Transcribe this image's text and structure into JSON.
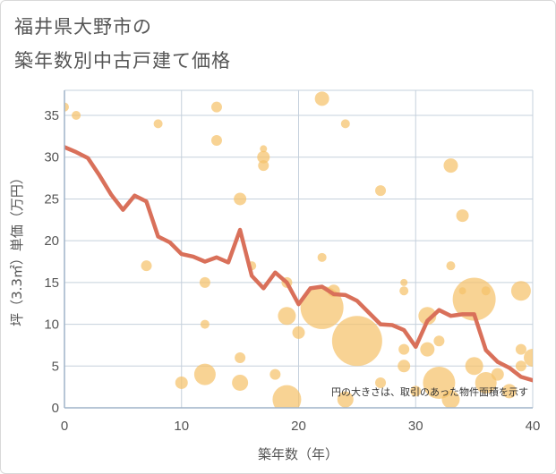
{
  "chart_data": {
    "type": "scatter",
    "title": [
      "福井県大野市の",
      "築年数別中古戸建て価格"
    ],
    "xlabel": "築年数（年）",
    "ylabel": "坪（3.3㎡）単価（万円）",
    "xlim": [
      0,
      40
    ],
    "ylim": [
      0,
      38
    ],
    "xticks": [
      0,
      10,
      20,
      30,
      40
    ],
    "yticks": [
      0,
      5,
      10,
      15,
      20,
      25,
      30,
      35
    ],
    "note": "円の大きさは、取引のあった物件面積を示す",
    "colors": {
      "bubble": "#f5c26b",
      "line": "#d9705a",
      "grid": "#c5d0dc",
      "axis": "#9fb3c8"
    },
    "series": [
      {
        "name": "bubbles",
        "kind": "scatter",
        "points": [
          {
            "x": 0,
            "y": 36,
            "r": 5
          },
          {
            "x": 1,
            "y": 35,
            "r": 5
          },
          {
            "x": 8,
            "y": 34,
            "r": 5
          },
          {
            "x": 13,
            "y": 36,
            "r": 6
          },
          {
            "x": 13,
            "y": 32,
            "r": 6
          },
          {
            "x": 17,
            "y": 31,
            "r": 4
          },
          {
            "x": 17,
            "y": 30,
            "r": 7
          },
          {
            "x": 17,
            "y": 29,
            "r": 6
          },
          {
            "x": 22,
            "y": 37,
            "r": 8
          },
          {
            "x": 24,
            "y": 34,
            "r": 5
          },
          {
            "x": 33,
            "y": 29,
            "r": 8
          },
          {
            "x": 27,
            "y": 26,
            "r": 6
          },
          {
            "x": 15,
            "y": 25,
            "r": 7
          },
          {
            "x": 34,
            "y": 23,
            "r": 7
          },
          {
            "x": 7,
            "y": 17,
            "r": 6
          },
          {
            "x": 22,
            "y": 18,
            "r": 5
          },
          {
            "x": 16,
            "y": 17,
            "r": 5
          },
          {
            "x": 33,
            "y": 17,
            "r": 5
          },
          {
            "x": 12,
            "y": 15,
            "r": 6
          },
          {
            "x": 19,
            "y": 15,
            "r": 6
          },
          {
            "x": 29,
            "y": 15,
            "r": 4
          },
          {
            "x": 23,
            "y": 14,
            "r": 7
          },
          {
            "x": 29,
            "y": 14,
            "r": 5
          },
          {
            "x": 39,
            "y": 14,
            "r": 11
          },
          {
            "x": 35,
            "y": 13,
            "r": 24
          },
          {
            "x": 22,
            "y": 12,
            "r": 24
          },
          {
            "x": 19,
            "y": 11,
            "r": 10
          },
          {
            "x": 31,
            "y": 11,
            "r": 10
          },
          {
            "x": 12,
            "y": 10,
            "r": 5
          },
          {
            "x": 20,
            "y": 9,
            "r": 7
          },
          {
            "x": 25,
            "y": 8,
            "r": 28
          },
          {
            "x": 32,
            "y": 8,
            "r": 6
          },
          {
            "x": 31,
            "y": 7,
            "r": 8
          },
          {
            "x": 29,
            "y": 7,
            "r": 6
          },
          {
            "x": 39,
            "y": 7,
            "r": 6
          },
          {
            "x": 15,
            "y": 6,
            "r": 6
          },
          {
            "x": 29,
            "y": 5,
            "r": 7
          },
          {
            "x": 35,
            "y": 5,
            "r": 10
          },
          {
            "x": 39,
            "y": 5,
            "r": 6
          },
          {
            "x": 12,
            "y": 4,
            "r": 12
          },
          {
            "x": 18,
            "y": 4,
            "r": 6
          },
          {
            "x": 37,
            "y": 4,
            "r": 7
          },
          {
            "x": 40,
            "y": 6,
            "r": 10
          },
          {
            "x": 10,
            "y": 3,
            "r": 7
          },
          {
            "x": 15,
            "y": 3,
            "r": 9
          },
          {
            "x": 27,
            "y": 3,
            "r": 6
          },
          {
            "x": 32,
            "y": 3,
            "r": 18
          },
          {
            "x": 36,
            "y": 3,
            "r": 12
          },
          {
            "x": 19,
            "y": 1,
            "r": 16
          },
          {
            "x": 24,
            "y": 1,
            "r": 9
          },
          {
            "x": 33,
            "y": 1,
            "r": 10
          },
          {
            "x": 30,
            "y": 2,
            "r": 6
          },
          {
            "x": 38,
            "y": 2,
            "r": 8
          },
          {
            "x": 34,
            "y": 14,
            "r": 4
          },
          {
            "x": 36,
            "y": 14,
            "r": 5
          }
        ]
      },
      {
        "name": "average",
        "kind": "line",
        "x": [
          0,
          1,
          2,
          3,
          4,
          5,
          6,
          7,
          8,
          9,
          10,
          11,
          12,
          13,
          14,
          15,
          16,
          17,
          18,
          19,
          20,
          21,
          22,
          23,
          24,
          25,
          26,
          27,
          28,
          29,
          30,
          31,
          32,
          33,
          34,
          35,
          36,
          37,
          38,
          39,
          40
        ],
        "y": [
          31.2,
          30.6,
          29.9,
          27.8,
          25.5,
          23.7,
          25.4,
          24.7,
          20.5,
          19.8,
          18.4,
          18.1,
          17.5,
          18.0,
          17.4,
          21.3,
          15.8,
          14.3,
          16.2,
          15.0,
          12.4,
          14.3,
          14.5,
          13.6,
          13.5,
          12.8,
          11.4,
          10.0,
          9.9,
          9.3,
          7.3,
          10.4,
          11.7,
          11.0,
          11.2,
          11.2,
          6.9,
          5.5,
          4.8,
          3.7,
          3.3
        ]
      }
    ]
  }
}
